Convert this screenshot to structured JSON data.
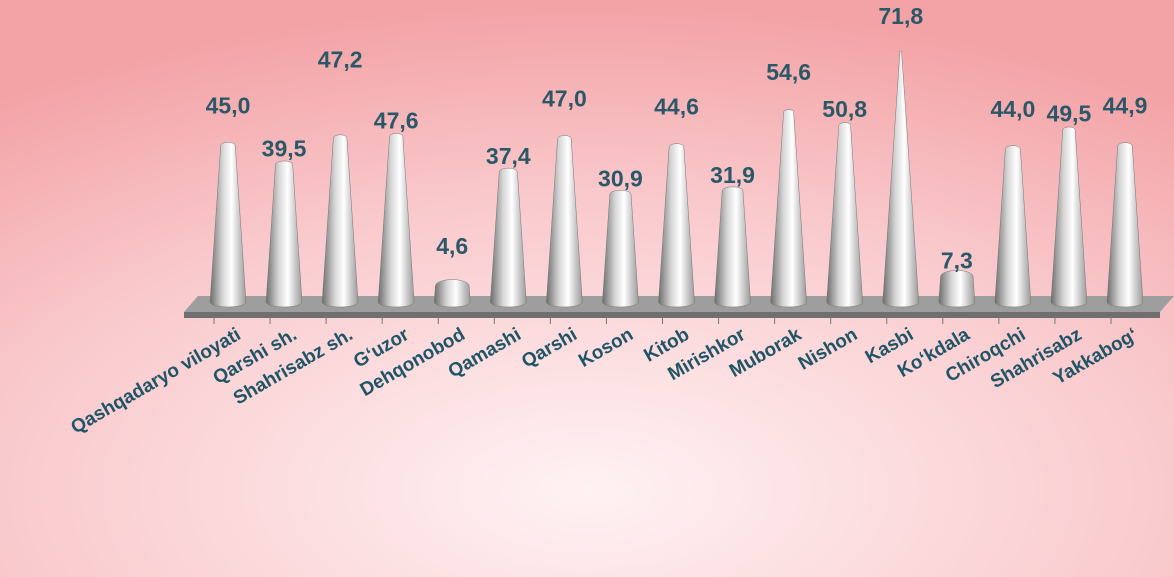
{
  "chart_data": {
    "type": "bar",
    "categories": [
      "Qashqadaryo viloyati",
      "Qarshi sh.",
      "Shahrisabz sh.",
      "G‘uzor",
      "Dehqonobod",
      "Qamashi",
      "Qarshi",
      "Koson",
      "Kitob",
      "Mirishkor",
      "Muborak",
      "Nishon",
      "Kasbi",
      "Ko‘kdala",
      "Chiroqchi",
      "Shahrisabz",
      "Yakkabog‘"
    ],
    "values": [
      45.0,
      39.5,
      47.2,
      47.6,
      4.6,
      37.4,
      47.0,
      30.9,
      44.6,
      31.9,
      54.6,
      50.8,
      71.8,
      7.3,
      44.0,
      49.5,
      44.9
    ],
    "value_labels": [
      "45,0",
      "39,5",
      "47,2",
      "47,6",
      "4,6",
      "37,4",
      "47,0",
      "30,9",
      "44,6",
      "31,9",
      "54,6",
      "50,8",
      "71,8",
      "7,3",
      "44,0",
      "49,5",
      "44,9"
    ],
    "color": "#d8d8d8"
  }
}
